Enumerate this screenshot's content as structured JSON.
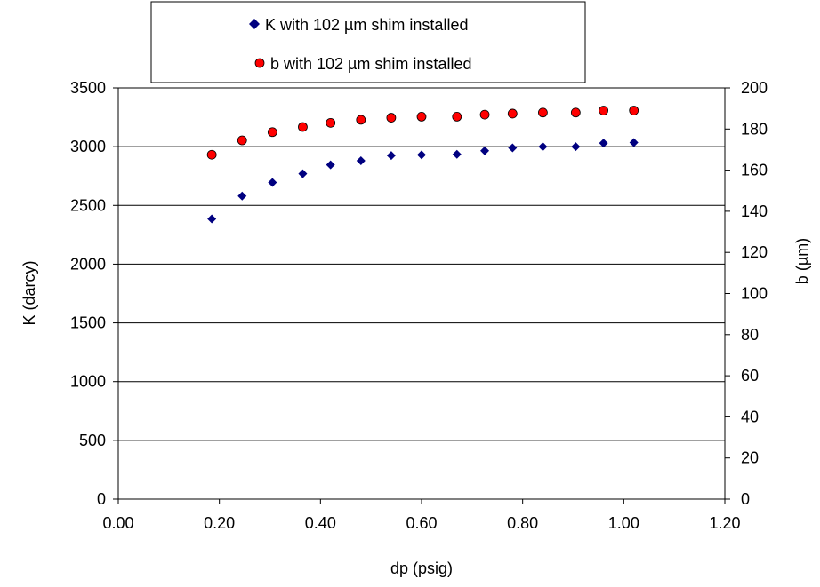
{
  "chart_data": {
    "type": "scatter",
    "xlabel": "dp (psig)",
    "ylabel": "K (darcy)",
    "y2label": "b (µm)",
    "xlim": [
      0,
      1.2
    ],
    "ylim": [
      0,
      3500
    ],
    "y2lim": [
      0,
      200
    ],
    "x_ticks": [
      "0.00",
      "0.20",
      "0.40",
      "0.60",
      "0.80",
      "1.00",
      "1.20"
    ],
    "y_ticks": [
      "0",
      "500",
      "1000",
      "1500",
      "2000",
      "2500",
      "3000",
      "3500"
    ],
    "y2_ticks": [
      "0",
      "20",
      "40",
      "60",
      "80",
      "100",
      "120",
      "140",
      "160",
      "180",
      "200"
    ],
    "grid": "horizontal major lines on left axis",
    "legend_position": "top",
    "series": [
      {
        "name": "K with 102 µm shim installed",
        "axis": "left",
        "marker": "diamond",
        "color": "#000080",
        "x": [
          0.185,
          0.245,
          0.305,
          0.365,
          0.42,
          0.48,
          0.54,
          0.6,
          0.67,
          0.725,
          0.78,
          0.84,
          0.905,
          0.96,
          1.02
        ],
        "y": [
          2385,
          2580,
          2695,
          2770,
          2845,
          2880,
          2925,
          2930,
          2935,
          2965,
          2990,
          3000,
          3000,
          3030,
          3035
        ]
      },
      {
        "name": "b with 102 µm shim installed",
        "axis": "right",
        "marker": "circle",
        "color": "#ff0000",
        "x": [
          0.185,
          0.245,
          0.305,
          0.365,
          0.42,
          0.48,
          0.54,
          0.6,
          0.67,
          0.725,
          0.78,
          0.84,
          0.905,
          0.96,
          1.02
        ],
        "y": [
          167.5,
          174.5,
          178.5,
          181,
          183,
          184.5,
          185.5,
          186,
          186,
          187,
          187.5,
          188,
          188,
          189,
          189
        ]
      }
    ]
  }
}
